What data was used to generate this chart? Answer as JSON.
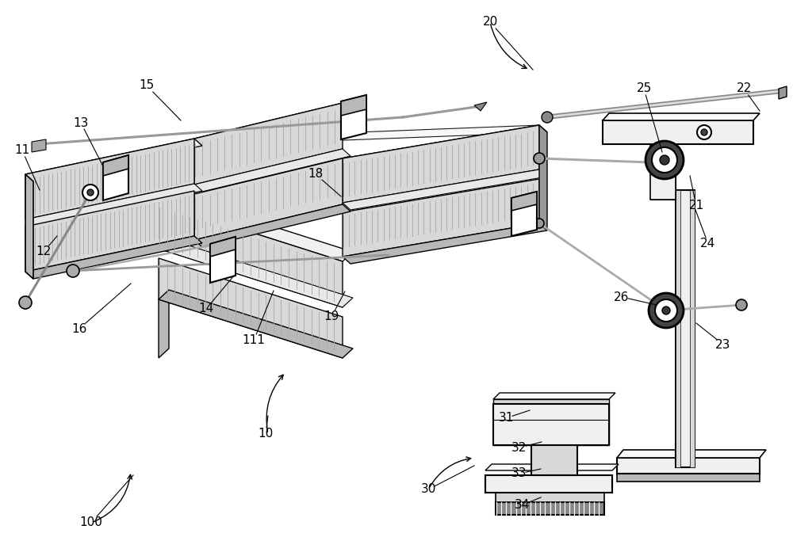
{
  "bg_color": "#ffffff",
  "face_light": "#f0f0f0",
  "face_mid": "#d8d8d8",
  "face_dark": "#b8b8b8",
  "face_darker": "#999999",
  "rack_dark": "#888888",
  "black": "#000000",
  "labels": [
    [
      "11",
      28,
      190,
      50,
      240
    ],
    [
      "13",
      102,
      155,
      130,
      210
    ],
    [
      "15",
      185,
      108,
      228,
      152
    ],
    [
      "12",
      55,
      318,
      72,
      298
    ],
    [
      "16",
      100,
      415,
      165,
      358
    ],
    [
      "18",
      398,
      220,
      430,
      248
    ],
    [
      "14",
      260,
      390,
      295,
      348
    ],
    [
      "111",
      320,
      430,
      345,
      367
    ],
    [
      "19",
      418,
      400,
      435,
      368
    ],
    [
      "20",
      618,
      28,
      672,
      88
    ],
    [
      "25",
      812,
      112,
      835,
      192
    ],
    [
      "22",
      938,
      112,
      958,
      140
    ],
    [
      "21",
      878,
      260,
      870,
      222
    ],
    [
      "24",
      893,
      308,
      877,
      265
    ],
    [
      "26",
      784,
      375,
      828,
      385
    ],
    [
      "23",
      912,
      435,
      878,
      408
    ],
    [
      "31",
      638,
      528,
      668,
      518
    ],
    [
      "32",
      655,
      565,
      683,
      558
    ],
    [
      "33",
      655,
      598,
      682,
      592
    ],
    [
      "34",
      658,
      638,
      682,
      628
    ],
    [
      "10",
      335,
      548,
      338,
      525
    ],
    [
      "30",
      540,
      618,
      598,
      588
    ],
    [
      "100",
      115,
      660,
      168,
      600
    ]
  ]
}
